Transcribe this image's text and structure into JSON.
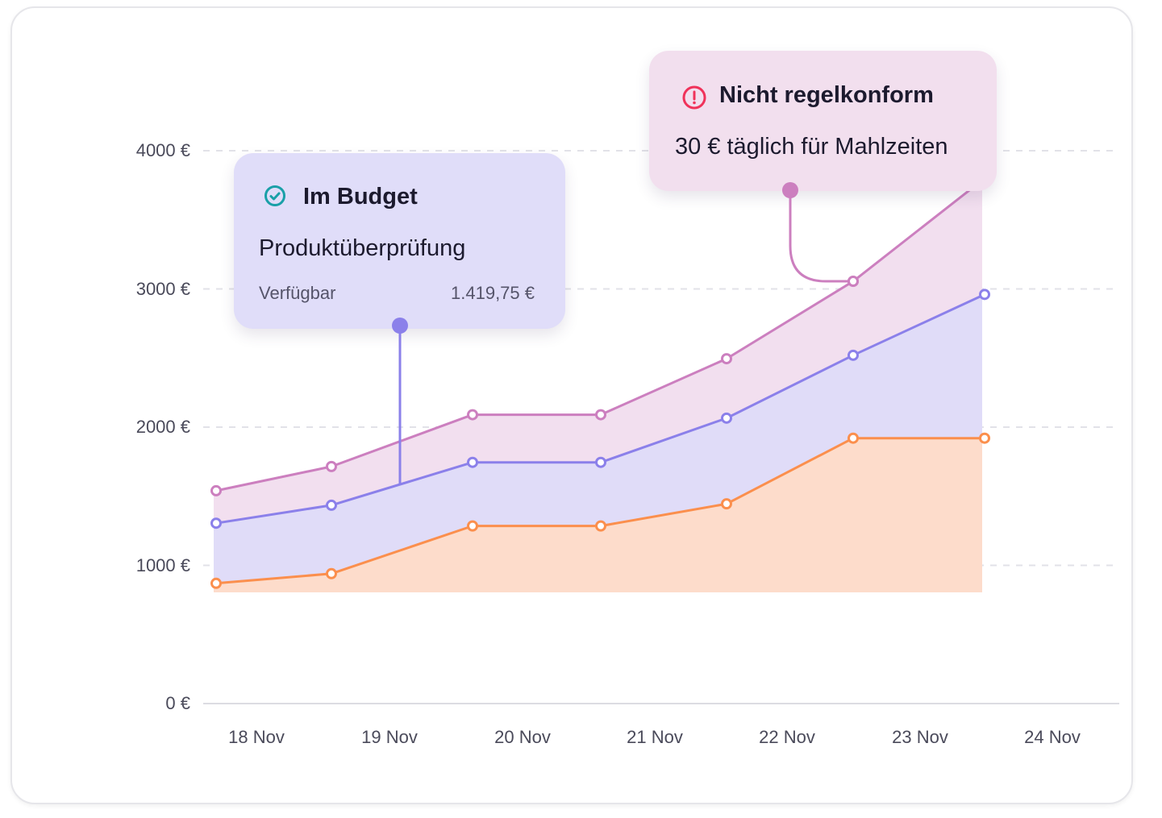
{
  "chart_data": {
    "type": "area",
    "categories": [
      "18 Nov",
      "19 Nov",
      "20 Nov",
      "21 Nov",
      "22 Nov",
      "23 Nov",
      "24 Nov"
    ],
    "x_points": [
      0.3,
      1.2,
      2.2,
      3.2,
      4.2,
      5.2,
      6.2
    ],
    "ylim": [
      0,
      4000
    ],
    "yticks": [
      "0 €",
      "1000 €",
      "2000 €",
      "3000 €",
      "4000 €"
    ],
    "ytick_values": [
      0,
      1000,
      2000,
      3000,
      4000
    ],
    "grid": true,
    "series": [
      {
        "values": [
          1540,
          1715,
          2090,
          2090,
          2495,
          3055,
          3800
        ],
        "color": "#cc7fbf",
        "fill": "#f2dfef"
      },
      {
        "values": [
          1305,
          1435,
          1745,
          1745,
          2065,
          2520,
          2960
        ],
        "color": "#8b80ea",
        "fill": "#e0dcf8"
      },
      {
        "values": [
          870,
          940,
          1285,
          1285,
          1445,
          1920,
          1920
        ],
        "color": "#fb8f4d",
        "fill": "#fddccb"
      }
    ]
  },
  "tooltips": {
    "budget": {
      "icon": "check-circle-icon",
      "icon_color": "#1aa0a8",
      "title": "Im Budget",
      "subtitle": "Produktüberprüfung",
      "label": "Verfügbar",
      "value": "1.419,75 €",
      "bg": "#e0ddf9"
    },
    "noncompliant": {
      "icon": "alert-circle-icon",
      "icon_color": "#f0325a",
      "title": "Nicht regelkonform",
      "subtitle": "30 € täglich für Mahlzeiten",
      "bg": "#f2dfee"
    }
  }
}
